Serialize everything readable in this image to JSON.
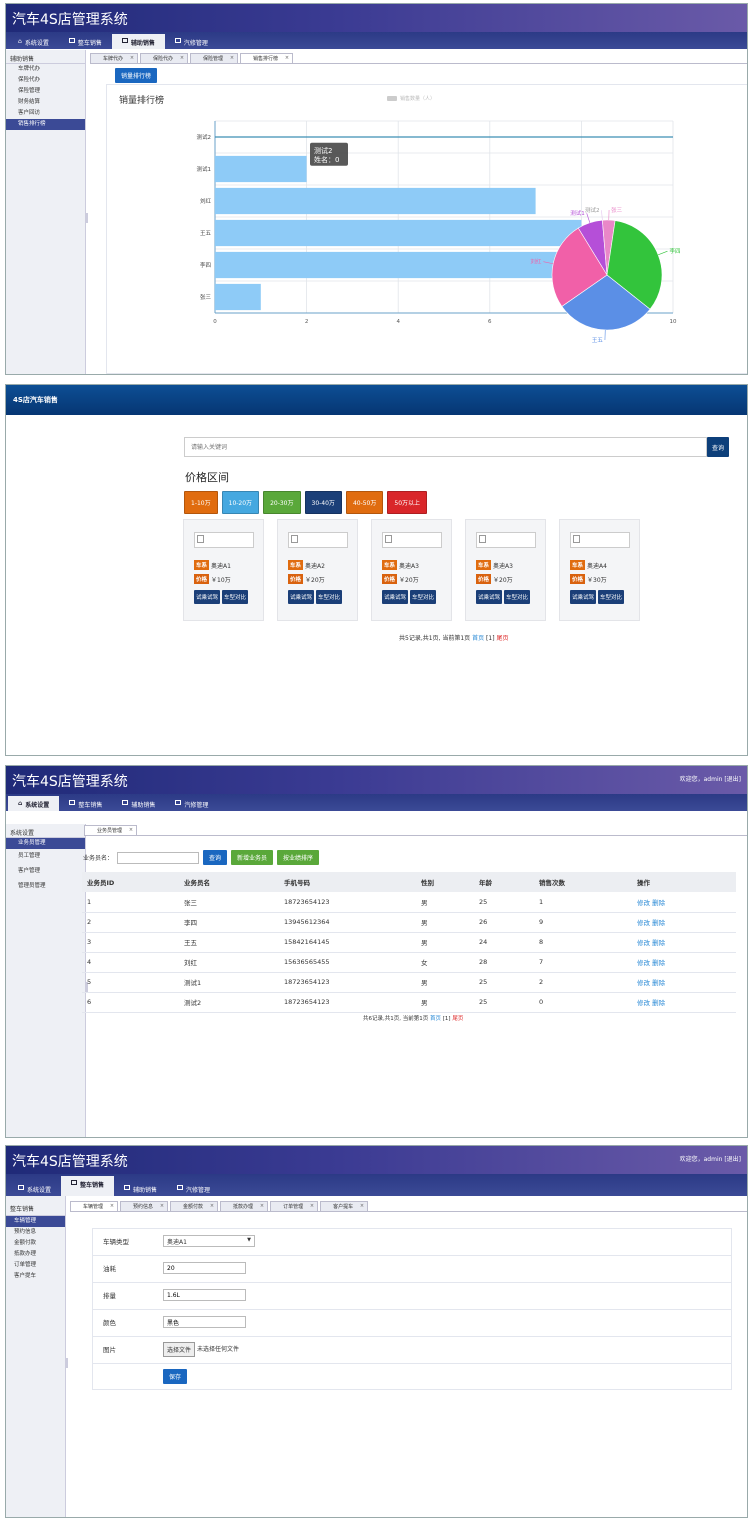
{
  "app_title": "汽车4S店管理系统",
  "p1": {
    "nav": [
      "系统设置",
      "整车销售",
      "辅助销售",
      "汽修管理"
    ],
    "nav_active": 2,
    "side_header": "辅助销售",
    "side_items": [
      "车牌代办",
      "保险代办",
      "保险管理",
      "财务结算",
      "客户回访",
      "销售排行榜"
    ],
    "side_selected": 5,
    "subtabs": [
      "车牌代办",
      "保险代办",
      "保险管理",
      "销售排行榜"
    ],
    "subtab_active": 3,
    "rank_button": "销量排行榜",
    "chart_title": "销量排行榜",
    "legend_label": "销售数量（人）",
    "tooltip_name": "测试2",
    "tooltip_value_line": "姓名：0",
    "chart_data": [
      {
        "type": "bar",
        "orientation": "horizontal",
        "categories": [
          "测试2",
          "测试1",
          "刘红",
          "王五",
          "李四",
          "张三"
        ],
        "values": [
          0,
          2,
          7,
          8,
          9,
          1
        ],
        "xlim": [
          0,
          10
        ],
        "xticks": [
          "0",
          "2",
          "4",
          "6",
          "8",
          "10"
        ],
        "grid": true
      },
      {
        "type": "pie",
        "labels": [
          "测试1",
          "测试2",
          "张三",
          "李四",
          "王五",
          "刘红"
        ],
        "values": [
          2,
          0,
          1,
          9,
          8,
          7
        ],
        "colors": [
          "#b54fd8",
          "#e4c5ef",
          "#e987c8",
          "#33c43c",
          "#5b8fe6",
          "#f160a8"
        ]
      }
    ]
  },
  "p2": {
    "header": "4S店汽车销售",
    "search_placeholder": "请输入关键词",
    "search_button": "查询",
    "price_title": "价格区间",
    "price_buttons": [
      {
        "label": "1-10万",
        "color": "#e06c0f"
      },
      {
        "label": "10-20万",
        "color": "#45a8e0"
      },
      {
        "label": "20-30万",
        "color": "#5aa83a"
      },
      {
        "label": "30-40万",
        "color": "#1b3f78"
      },
      {
        "label": "40-50万",
        "color": "#e06c0f"
      },
      {
        "label": "50万以上",
        "color": "#d9262a"
      }
    ],
    "car_label": "车系",
    "price_label": "价格",
    "trial_button": "试乘试驾",
    "compare_button": "车型对比",
    "cars": [
      {
        "name": "奥迪A1",
        "price": "￥10万"
      },
      {
        "name": "奥迪A2",
        "price": "￥20万"
      },
      {
        "name": "奥迪A3",
        "price": "￥20万"
      },
      {
        "name": "奥迪A3",
        "price": "￥20万"
      },
      {
        "name": "奥迪A4",
        "price": "￥30万"
      }
    ],
    "pager_text": "共5记录,共1页, 当前第1页",
    "pager_first": "首页",
    "pager_last": "尾页"
  },
  "p3": {
    "welcome": "欢迎您，admin [退出]",
    "nav": [
      "系统设置",
      "整车销售",
      "辅助销售",
      "汽修管理"
    ],
    "nav_active": 0,
    "side_header": "系统设置",
    "side_items": [
      "业务员管理",
      "员工管理",
      "客户管理",
      "管理员管理"
    ],
    "side_selected": 0,
    "subtab": "业务员管理",
    "filter_label": "业务员名：",
    "query_button": "查询",
    "add_button": "新增业务员",
    "sort_button": "按业绩排序",
    "columns": [
      "业务员ID",
      "业务员名",
      "手机号码",
      "性别",
      "年龄",
      "销售次数",
      "操作"
    ],
    "rows": [
      [
        "1",
        "张三",
        "18723654123",
        "男",
        "25",
        "1"
      ],
      [
        "2",
        "李四",
        "13945612364",
        "男",
        "26",
        "9"
      ],
      [
        "3",
        "王五",
        "15842164145",
        "男",
        "24",
        "8"
      ],
      [
        "4",
        "刘红",
        "15636565455",
        "女",
        "28",
        "7"
      ],
      [
        "5",
        "测试1",
        "18723654123",
        "男",
        "25",
        "2"
      ],
      [
        "6",
        "测试2",
        "18723654123",
        "男",
        "25",
        "0"
      ]
    ],
    "edit_link": "修改",
    "delete_link": "删除",
    "pager_text": "共6记录,共1页, 当前第1页",
    "pager_first": "首页",
    "pager_mid": "[1]",
    "pager_last": "尾页"
  },
  "p4": {
    "welcome": "欢迎您，admin [退出]",
    "nav": [
      "系统设置",
      "整车销售",
      "辅助销售",
      "汽修管理"
    ],
    "nav_active": 1,
    "side_header": "整车销售",
    "side_items": [
      "车辆管理",
      "预约信息",
      "金额付款",
      "抵款办理",
      "订单管理",
      "客户提车"
    ],
    "side_selected": 0,
    "subtabs": [
      "车辆管理",
      "预约信息",
      "金额付款",
      "抵款办理",
      "订单管理",
      "客户提车"
    ],
    "subtab_active": 0,
    "form": {
      "type_label": "车辆类型",
      "type_value": "奥迪A1",
      "fuel_label": "油耗",
      "fuel_value": "20",
      "displacement_label": "排量",
      "displacement_value": "1.6L",
      "color_label": "颜色",
      "color_value": "黑色",
      "image_label": "图片",
      "file_button": "选择文件",
      "file_status": "未选择任何文件",
      "save_button": "保存"
    }
  }
}
